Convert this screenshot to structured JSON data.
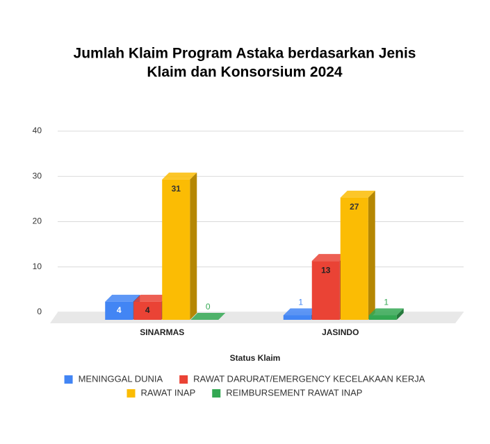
{
  "chart_data": {
    "type": "bar3d",
    "title": [
      "Jumlah Klaim Program Astaka  berdasarkan Jenis",
      "Klaim dan Konsorsium 2024"
    ],
    "x_label": "Status Klaim",
    "categories": [
      "SINARMAS",
      "JASINDO"
    ],
    "series": [
      {
        "name": "MENINGGAL DUNIA",
        "color": "#4285f4",
        "values": [
          4,
          1
        ]
      },
      {
        "name": "RAWAT DARURAT/EMERGENCY KECELAKAAN KERJA",
        "color": "#ea4335",
        "values": [
          4,
          13
        ]
      },
      {
        "name": "RAWAT INAP",
        "color": "#fbbc04",
        "values": [
          31,
          27
        ]
      },
      {
        "name": "REIMBURSEMENT RAWAT INAP",
        "color": "#34a853",
        "values": [
          0,
          1
        ]
      }
    ],
    "ylim": [
      0,
      40
    ],
    "yticks": [
      0,
      10,
      20,
      30,
      40
    ],
    "grid": true
  }
}
